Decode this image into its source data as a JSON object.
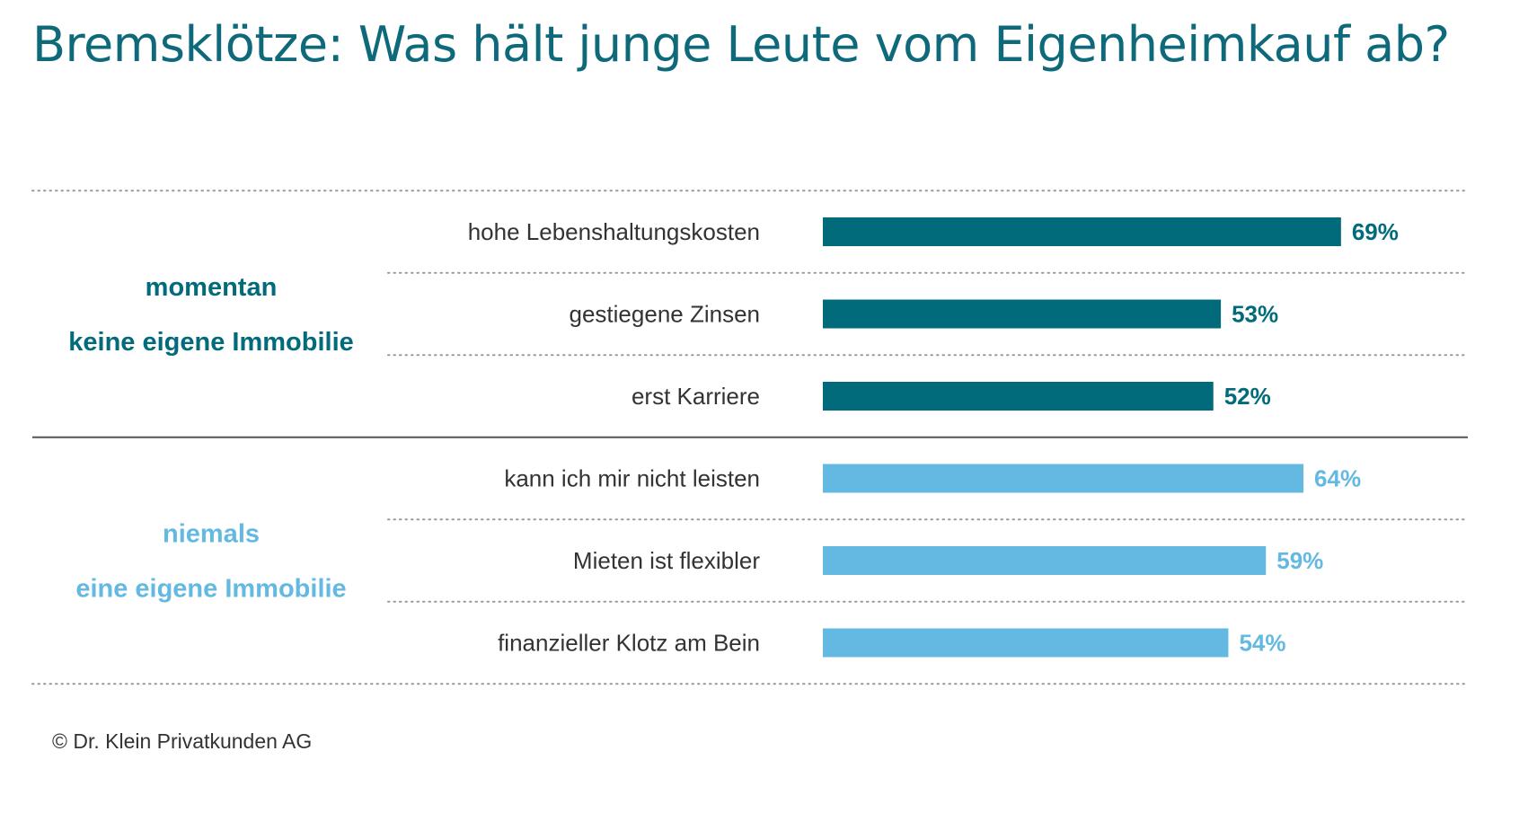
{
  "title": "Bremsklötze: Was hält junge Leute vom Eigenheimkauf ab?",
  "footer": "© Dr. Klein Privatkunden AG",
  "colors": {
    "group1": "#016b7c",
    "group2": "#64b9e2",
    "separator": "#555555",
    "dots": "#999999",
    "row_label": "#333333"
  },
  "chart_data": {
    "type": "bar",
    "orientation": "horizontal",
    "title": "Bremsklötze: Was hält junge Leute vom Eigenheimkauf ab?",
    "xlim": [
      0,
      100
    ],
    "unit": "%",
    "groups": [
      {
        "label_lines": [
          "momentan",
          "keine eigene Immobilie"
        ],
        "color": "#016b7c",
        "items": [
          {
            "label": "hohe Lebenshaltungskosten",
            "value": 69,
            "value_label": "69%"
          },
          {
            "label": "gestiegene Zinsen",
            "value": 53,
            "value_label": "53%"
          },
          {
            "label": "erst Karriere",
            "value": 52,
            "value_label": "52%"
          }
        ]
      },
      {
        "label_lines": [
          "niemals",
          "eine eigene Immobilie"
        ],
        "color": "#64b9e2",
        "items": [
          {
            "label": "kann ich mir nicht leisten",
            "value": 64,
            "value_label": "64%"
          },
          {
            "label": "Mieten ist flexibler",
            "value": 59,
            "value_label": "59%"
          },
          {
            "label": "finanzieller Klotz am Bein",
            "value": 54,
            "value_label": "54%"
          }
        ]
      }
    ]
  }
}
